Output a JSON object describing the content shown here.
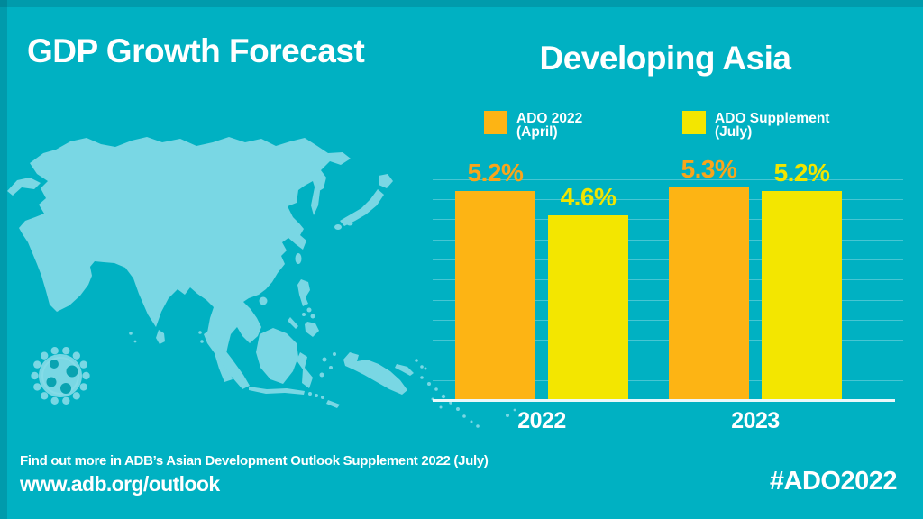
{
  "header": {
    "title": "GDP Growth Forecast",
    "subtitle": "Developing Asia"
  },
  "legend": [
    {
      "line1": "ADO 2022",
      "line2": "(April)",
      "color": "#FDB414"
    },
    {
      "line1": "ADO Supplement",
      "line2": "(July)",
      "color": "#F3E600"
    }
  ],
  "chart_data": {
    "type": "bar",
    "title": "Developing Asia",
    "categories": [
      "2022",
      "2023"
    ],
    "series": [
      {
        "name": "ADO 2022 (April)",
        "values": [
          5.2,
          5.3
        ],
        "color": "#FDB414",
        "label_color": "#F9A51B"
      },
      {
        "name": "ADO Supplement (July)",
        "values": [
          4.6,
          5.2
        ],
        "color": "#F3E600",
        "label_color": "#F1E500"
      }
    ],
    "value_labels": [
      [
        "5.2%",
        "5.3%"
      ],
      [
        "4.6%",
        "5.2%"
      ]
    ],
    "unit": "%",
    "xlabel": "",
    "ylabel": "",
    "ylim": [
      0,
      6
    ],
    "grid": true,
    "grid_step": 0.5,
    "legend_position": "top"
  },
  "footer": {
    "note": "Find out more in ADB’s Asian Development Outlook Supplement 2022 (July)",
    "url": "www.adb.org/outlook",
    "hashtag": "#ADO2022"
  },
  "icons": {
    "map": "asia-map",
    "virus": "coronavirus-icon"
  },
  "colors": {
    "background": "#00B1C2",
    "map": "#79D7E4",
    "bar_orange": "#FDB414",
    "bar_yellow": "#F3E600",
    "text": "#FFFFFF",
    "gridline": "#58CBD8",
    "baseline": "#EAF8FA",
    "virus_holes": "#09A3B1"
  }
}
